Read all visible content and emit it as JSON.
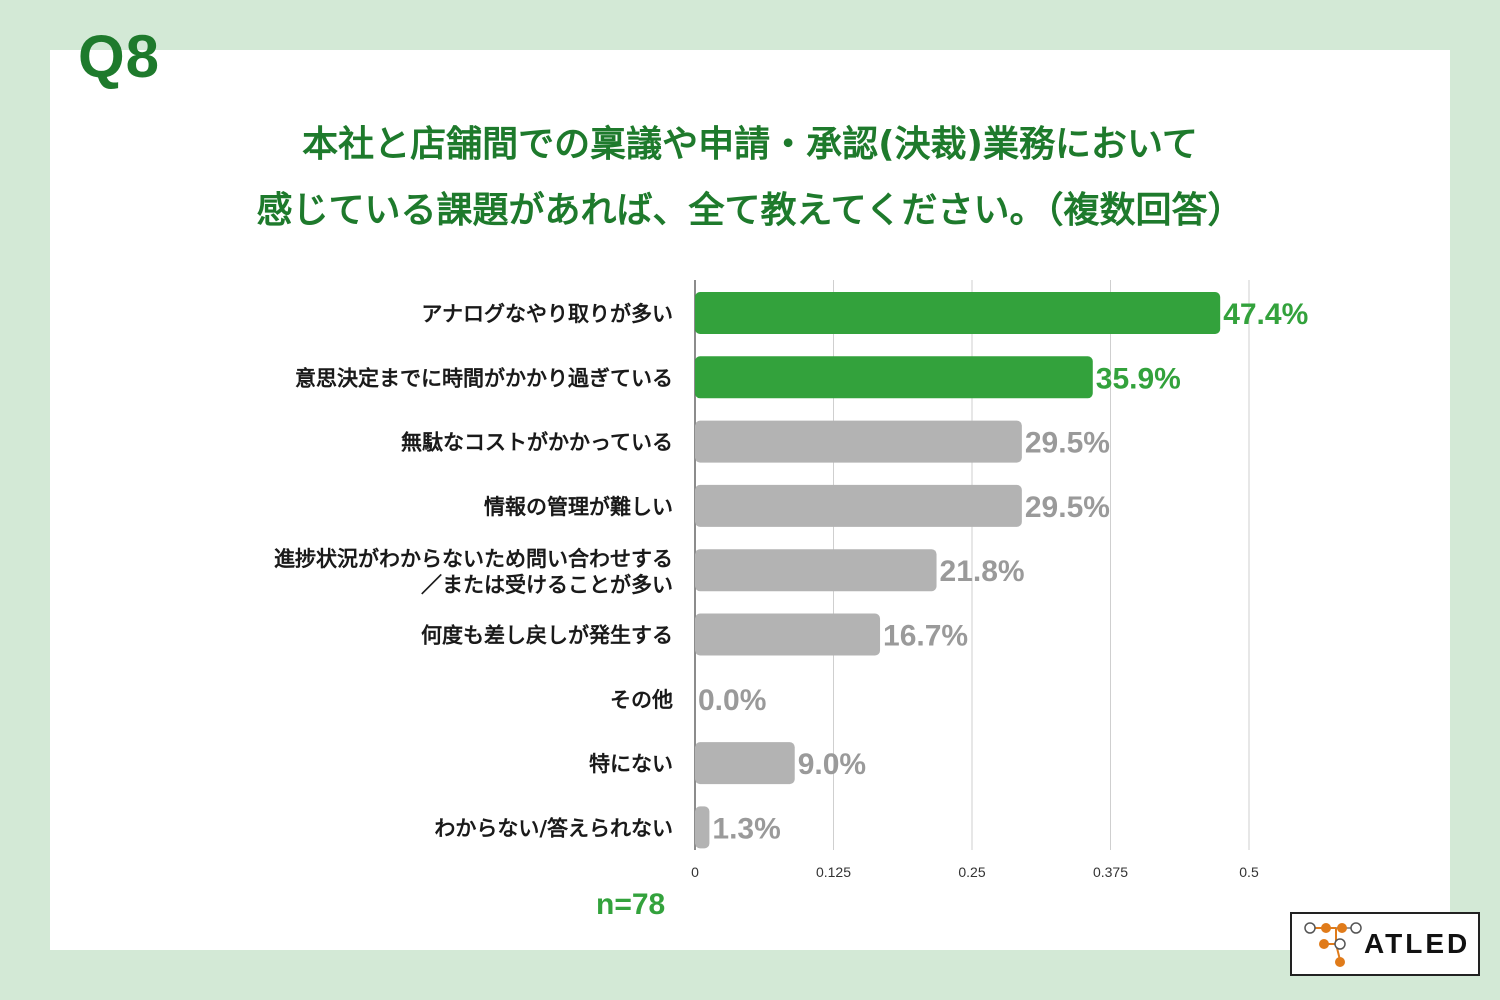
{
  "question_number": "Q8",
  "title_lines": [
    "本社と店舗間での稟議や申請・承認(決裁)業務において",
    "感じている課題があれば、全て教えてください。（複数回答）"
  ],
  "sample_size_label": "n=78",
  "brand": {
    "logo_text": "ATLED"
  },
  "colors": {
    "background": "#d3e9d6",
    "title": "#1e7a2c",
    "highlight_bar": "#33a23c",
    "normal_bar": "#b3b3b3",
    "normal_value": "#9a9a9a"
  },
  "chart_data": {
    "type": "bar",
    "orientation": "horizontal",
    "categories": [
      [
        "アナログなやり取りが多い"
      ],
      [
        "意思決定までに時間がかかり過ぎている"
      ],
      [
        "無駄なコストがかかっている"
      ],
      [
        "情報の管理が難しい"
      ],
      [
        "進捗状況がわからないため問い合わせする",
        "／または受けることが多い"
      ],
      [
        "何度も差し戻しが発生する"
      ],
      [
        "その他"
      ],
      [
        "特にない"
      ],
      [
        "わからない/答えられない"
      ]
    ],
    "values": [
      0.474,
      0.359,
      0.295,
      0.295,
      0.218,
      0.167,
      0.0,
      0.09,
      0.013
    ],
    "value_labels": [
      "47.4%",
      "35.9%",
      "29.5%",
      "29.5%",
      "21.8%",
      "16.7%",
      "0.0%",
      "9.0%",
      "1.3%"
    ],
    "highlighted": [
      true,
      true,
      false,
      false,
      false,
      false,
      false,
      false,
      false
    ],
    "xlim": [
      0,
      0.5
    ],
    "xticks": [
      0,
      0.125,
      0.25,
      0.375,
      0.5
    ],
    "xtick_labels": [
      "0",
      "0.125",
      "0.25",
      "0.375",
      "0.5"
    ],
    "grid": true
  }
}
